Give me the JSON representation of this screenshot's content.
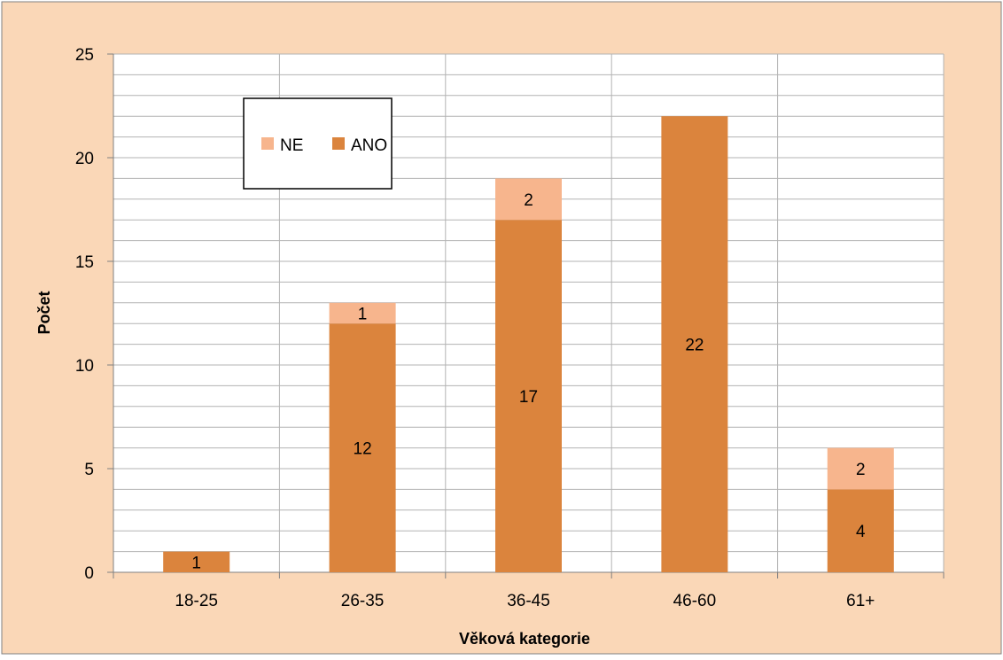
{
  "colors": {
    "chart_background": "#fad7b7",
    "plot_background": "#ffffff",
    "gridline": "#b3b3b3",
    "ano": "#db843d",
    "ne": "#f7b58d",
    "axis": "#808080",
    "text": "#000000"
  },
  "chart_data": {
    "type": "bar",
    "stacked": true,
    "title": "",
    "xlabel": "Věková kategorie",
    "ylabel": "Počet",
    "categories": [
      "18-25",
      "26-35",
      "36-45",
      "46-60",
      "61+"
    ],
    "series": [
      {
        "name": "ANO",
        "values": [
          1,
          12,
          17,
          22,
          4
        ],
        "color": "#db843d"
      },
      {
        "name": "NE",
        "values": [
          0,
          1,
          2,
          0,
          2
        ],
        "color": "#f7b58d"
      }
    ],
    "ylim": [
      0,
      25
    ],
    "y_ticks": [
      0,
      5,
      10,
      15,
      20,
      25
    ],
    "minor_y_step": 1,
    "grid": true,
    "legend": {
      "position": "top-left inside plot",
      "order": [
        "NE",
        "ANO"
      ]
    },
    "data_labels": true
  }
}
